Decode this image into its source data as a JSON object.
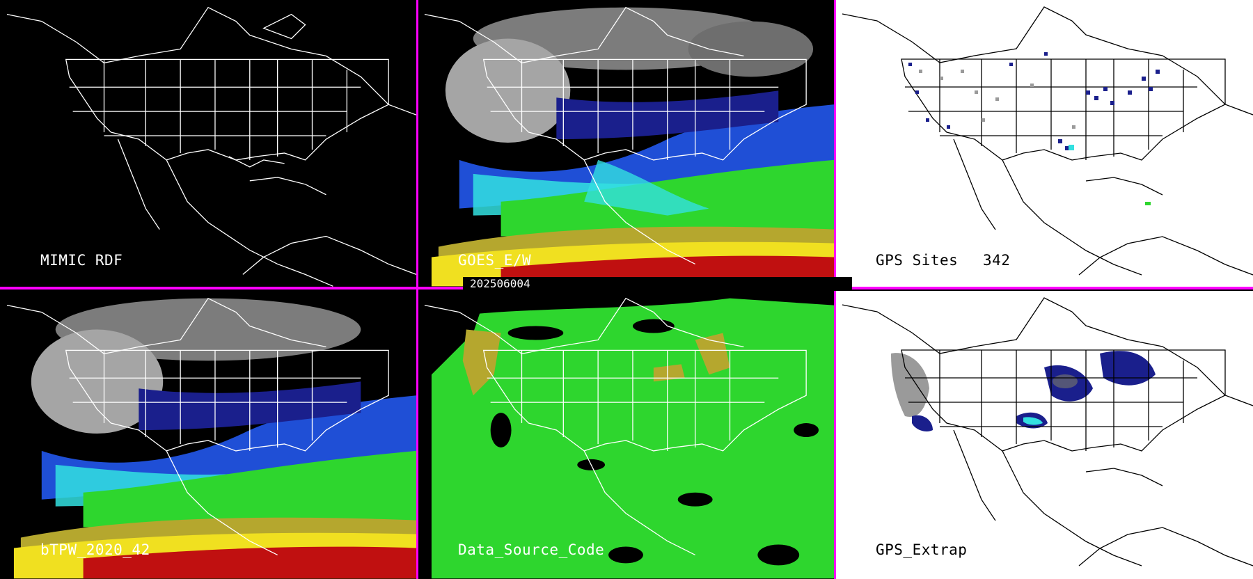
{
  "timestamp": "202506004",
  "panels": [
    {
      "id": "mimic-rdf",
      "label": "MIMIC RDF",
      "bg": "#000000",
      "fields": [
        "outline"
      ]
    },
    {
      "id": "goes-ew",
      "label": "GOES_E/W",
      "bg": "#000000",
      "fields": [
        "tpw"
      ]
    },
    {
      "id": "gps-sites",
      "label": "GPS Sites",
      "count": "342",
      "bg": "#ffffff",
      "fields": [
        "sites"
      ]
    },
    {
      "id": "btpw",
      "label": "bTPW_2020_42",
      "bg": "#000000",
      "fields": [
        "tpw"
      ]
    },
    {
      "id": "data-source",
      "label": "Data_Source_Code",
      "bg": "#000000",
      "fields": [
        "source"
      ]
    },
    {
      "id": "gps-extrap",
      "label": "GPS_Extrap",
      "bg": "#ffffff",
      "fields": [
        "extrap"
      ]
    }
  ],
  "colors": {
    "divider": "#ff00ff",
    "dry_gray": "#9a9a9a",
    "navy": "#1a1f8c",
    "blue": "#1f4fd6",
    "cyan": "#33e0e0",
    "green": "#2ed62e",
    "olive": "#b5a72e",
    "yellow": "#f0e020",
    "red": "#c01010"
  }
}
